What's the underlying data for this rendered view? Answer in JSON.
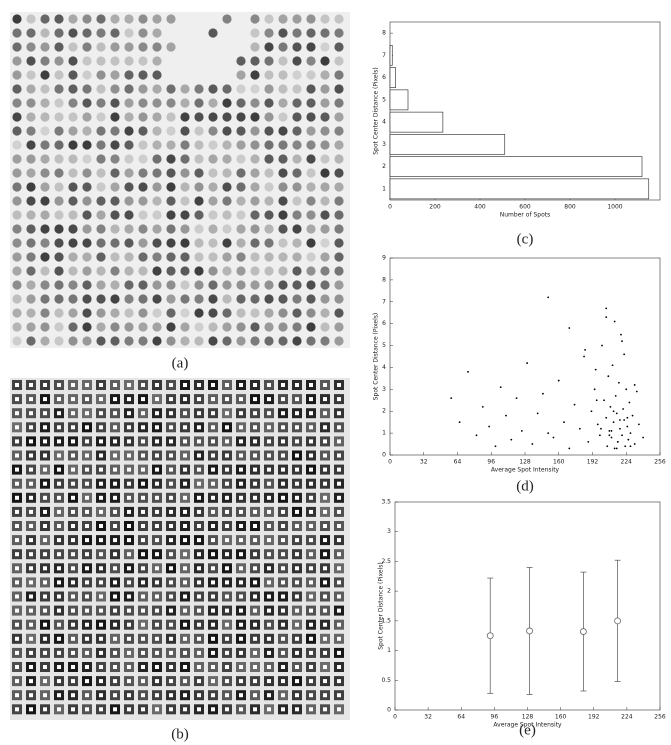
{
  "images": [
    {
      "label": "(a)"
    },
    {
      "label": "(b)"
    }
  ],
  "chart_data": [
    {
      "type": "bar",
      "orientation": "horizontal",
      "panel_label": "(c)",
      "x_label": "Number of Spots",
      "y_label": "Spot Center Distance (Pixels)",
      "categories": [
        "1",
        "2",
        "3",
        "4",
        "5",
        "6",
        "7",
        "8"
      ],
      "values": [
        1150,
        1120,
        510,
        235,
        80,
        25,
        10,
        0
      ],
      "color": "#ffffff",
      "xlim": [
        0,
        1200
      ],
      "xticks": [
        0,
        200,
        400,
        600,
        800,
        1000
      ]
    },
    {
      "type": "scatter",
      "panel_label": "(d)",
      "x_label": "Average Spot Intensity",
      "y_label": "Spot Center Distance (Pixels)",
      "color": "#000000",
      "x": [
        58,
        66,
        74,
        82,
        88,
        94,
        100,
        105,
        110,
        115,
        120,
        125,
        130,
        135,
        140,
        145,
        150,
        155,
        160,
        165,
        170,
        175,
        180,
        184,
        188,
        191,
        194,
        197,
        199,
        201,
        203,
        205,
        206,
        207,
        208,
        209,
        210,
        211,
        212,
        213,
        214,
        215,
        216,
        217,
        218,
        219,
        220,
        221,
        222,
        223,
        224,
        225,
        226,
        227,
        228,
        230,
        232,
        234,
        236,
        240,
        205,
        210,
        215,
        212,
        218,
        208,
        222,
        200,
        216,
        196,
        150,
        170,
        185,
        195,
        205,
        213,
        220,
        225,
        228,
        232
      ],
      "values": [
        2.6,
        1.5,
        3.8,
        0.9,
        2.2,
        1.3,
        0.4,
        3.1,
        1.8,
        0.7,
        2.6,
        1.1,
        4.2,
        0.5,
        1.9,
        2.8,
        7.2,
        0.8,
        3.4,
        1.5,
        0.3,
        2.3,
        1.2,
        4.5,
        0.6,
        2.0,
        3.0,
        1.4,
        0.9,
        5.0,
        2.5,
        1.7,
        0.4,
        3.6,
        1.1,
        2.2,
        0.8,
        4.1,
        1.5,
        0.3,
        2.7,
        1.9,
        0.6,
        3.3,
        1.2,
        5.5,
        0.9,
        2.1,
        1.6,
        0.4,
        3.0,
        1.3,
        0.7,
        2.4,
        1.0,
        1.8,
        0.5,
        2.9,
        1.4,
        0.8,
        6.3,
        1.1,
        0.3,
        2.0,
        1.6,
        0.9,
        4.6,
        1.2,
        0.6,
        2.5,
        1.0,
        5.8,
        4.8,
        3.9,
        6.7,
        6.1,
        5.2,
        1.7,
        0.4,
        3.2
      ],
      "xlim": [
        0,
        256
      ],
      "xticks": [
        0,
        32,
        64,
        96,
        128,
        160,
        192,
        224,
        256
      ],
      "ylim": [
        0,
        9
      ],
      "yticks": [
        0,
        1,
        2,
        3,
        4,
        5,
        6,
        7,
        8,
        9
      ]
    },
    {
      "type": "errorbar",
      "panel_label": "(e)",
      "x_label": "Average Spot Intensity",
      "y_label": "Spot Center Distance (Pixels)",
      "color": "#666666",
      "x": [
        92,
        130,
        182,
        215
      ],
      "values": [
        1.25,
        1.33,
        1.32,
        1.5
      ],
      "errors": [
        0.97,
        1.07,
        1.0,
        1.02
      ],
      "xlim": [
        0,
        256
      ],
      "xticks": [
        0,
        32,
        64,
        96,
        128,
        160,
        192,
        224,
        256
      ],
      "ylim": [
        0,
        3.5
      ],
      "yticks": [
        0,
        0.5,
        1,
        1.5,
        2,
        2.5,
        3,
        3.5
      ]
    }
  ]
}
